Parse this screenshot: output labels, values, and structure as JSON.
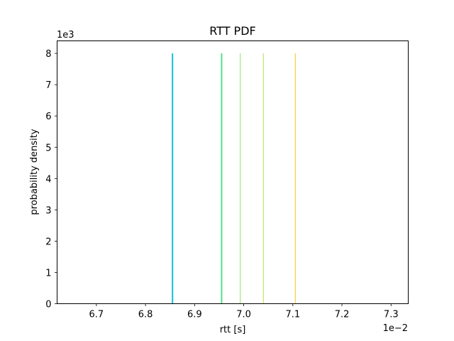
{
  "chart_data": {
    "type": "bar",
    "title": "RTT PDF",
    "xlabel": "rtt [s]",
    "ylabel": "probability density",
    "x_offset_text": "1e−2",
    "y_offset_text": "1e3",
    "x_scale_factor": 0.01,
    "y_scale_factor": 1000,
    "xlim": [
      6.62,
      7.335
    ],
    "ylim": [
      0,
      8.4
    ],
    "x_ticks": [
      6.7,
      6.8,
      6.9,
      7.0,
      7.1,
      7.2,
      7.3
    ],
    "x_tick_labels": [
      "6.7",
      "6.8",
      "6.9",
      "7.0",
      "7.1",
      "7.2",
      "7.3"
    ],
    "y_ticks": [
      0,
      1,
      2,
      3,
      4,
      5,
      6,
      7,
      8
    ],
    "y_tick_labels": [
      "0",
      "1",
      "2",
      "3",
      "4",
      "5",
      "6",
      "7",
      "8"
    ],
    "grid": false,
    "series": [
      {
        "x": 6.855,
        "value": 8.0,
        "color": "#17becf",
        "width": 2
      },
      {
        "x": 6.955,
        "value": 8.0,
        "color": "#4fe08a",
        "width": 2
      },
      {
        "x": 6.993,
        "value": 8.0,
        "color": "#8ee55a",
        "width": 1
      },
      {
        "x": 7.04,
        "value": 8.0,
        "color": "#b5e04a",
        "width": 1
      },
      {
        "x": 7.105,
        "value": 8.0,
        "color": "#f0c419",
        "width": 1
      }
    ]
  }
}
